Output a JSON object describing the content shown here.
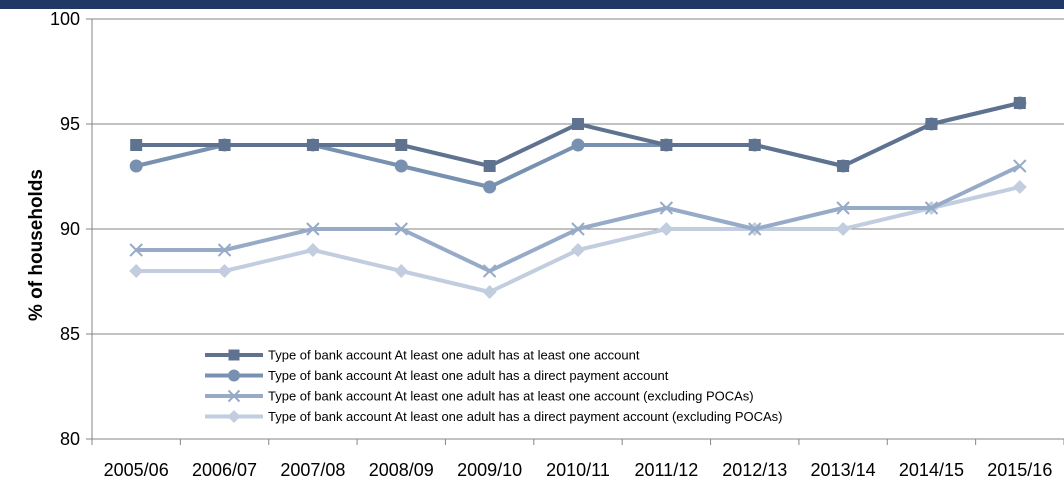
{
  "chart_data": {
    "type": "line",
    "title": "",
    "xlabel": "",
    "ylabel": "% of households",
    "ylim": [
      80,
      100
    ],
    "yticks": [
      80,
      85,
      90,
      95,
      100
    ],
    "grid": "horizontal",
    "legend_position": "bottom-left-inside",
    "categories": [
      "2005/06",
      "2006/07",
      "2007/08",
      "2008/09",
      "2009/10",
      "2010/11",
      "2011/12",
      "2012/13",
      "2013/14",
      "2014/15",
      "2015/16"
    ],
    "series": [
      {
        "name": "Type of bank account At least one adult has at least one account",
        "color": "#5f7390",
        "marker": "square",
        "values": [
          94,
          94,
          94,
          94,
          93,
          95,
          94,
          94,
          93,
          95,
          96
        ]
      },
      {
        "name": "Type of bank account At least one adult has a direct payment account",
        "color": "#7891b0",
        "marker": "circle",
        "values": [
          93,
          94,
          94,
          93,
          92,
          94,
          94,
          94,
          93,
          95,
          96
        ]
      },
      {
        "name": "Type of bank account At least one adult has at least one account (excluding POCAs)",
        "color": "#97abc8",
        "marker": "x",
        "values": [
          89,
          89,
          90,
          90,
          88,
          90,
          91,
          90,
          91,
          91,
          93
        ]
      },
      {
        "name": "Type of bank account At least one adult has a direct payment account (excluding POCAs)",
        "color": "#c2cedf",
        "marker": "diamond",
        "values": [
          88,
          88,
          89,
          88,
          87,
          89,
          90,
          90,
          90,
          91,
          92
        ]
      }
    ]
  }
}
